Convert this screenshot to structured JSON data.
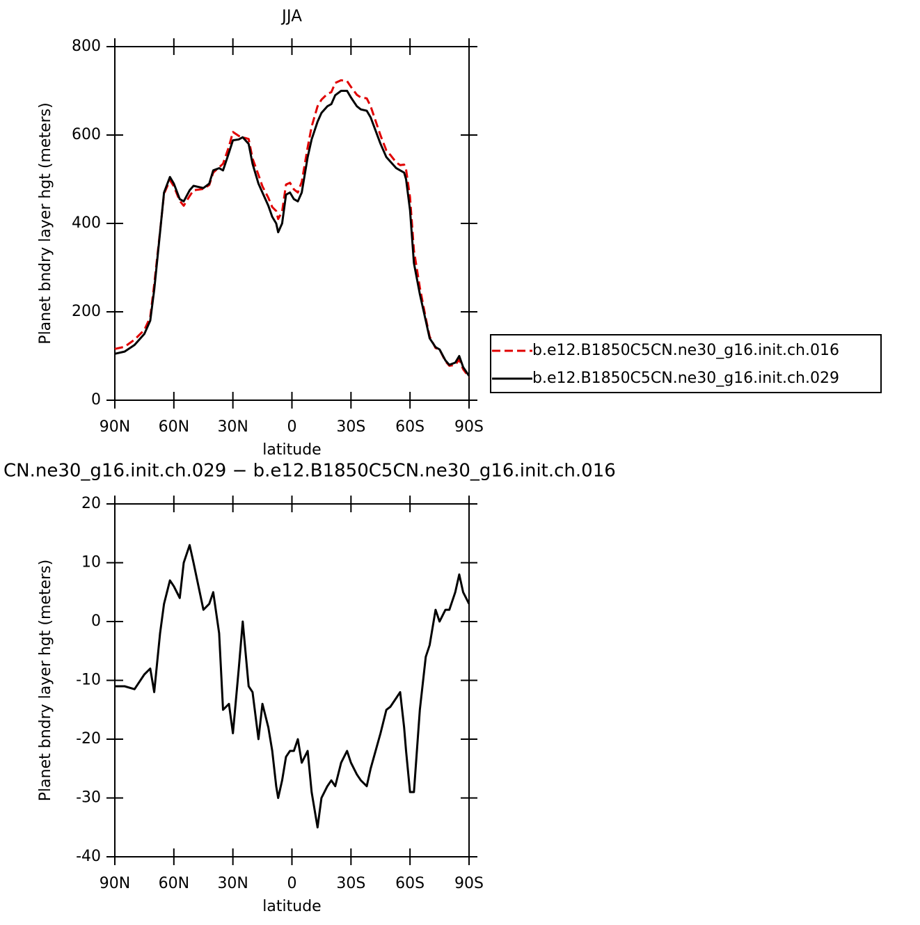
{
  "chart_data": [
    {
      "type": "line",
      "title": "JJA",
      "xlabel": "latitude",
      "ylabel": "Planet bndry layer hgt (meters)",
      "x": [
        90,
        85,
        80,
        75,
        72,
        70,
        67,
        65,
        62,
        60,
        57,
        55,
        52,
        50,
        45,
        42,
        40,
        37,
        35,
        32,
        30,
        27,
        25,
        22,
        20,
        17,
        15,
        12,
        10,
        8,
        7,
        5,
        3,
        1,
        -1,
        -3,
        -5,
        -8,
        -10,
        -13,
        -15,
        -18,
        -20,
        -22,
        -25,
        -28,
        -30,
        -33,
        -35,
        -38,
        -40,
        -45,
        -48,
        -50,
        -53,
        -55,
        -57,
        -58,
        -60,
        -62,
        -65,
        -68,
        -70,
        -73,
        -75,
        -78,
        -80,
        -83,
        -85,
        -87,
        -90
      ],
      "xlim": [
        90,
        -90
      ],
      "xticks": [
        {
          "value": 90,
          "label": "90N"
        },
        {
          "value": 60,
          "label": "60N"
        },
        {
          "value": 30,
          "label": "30N"
        },
        0,
        {
          "value": -30,
          "label": "30S"
        },
        {
          "value": -60,
          "label": "60S"
        },
        {
          "value": -90,
          "label": "90S"
        }
      ],
      "ylim": [
        0,
        800
      ],
      "yticks": [
        0,
        200,
        400,
        600,
        800
      ],
      "legend": "right",
      "series": [
        {
          "name": "b.e12.B1850C5CN.ne30_g16.init.ch.016",
          "color": "#e00000",
          "linestyle": "dashed",
          "values": [
            116,
            121,
            137,
            159,
            188,
            262,
            382,
            467,
            498,
            484,
            451,
            440,
            462,
            475,
            478,
            487,
            515,
            527,
            535,
            574,
            607,
            598,
            595,
            591,
            547,
            510,
            484,
            458,
            437,
            428,
            410,
            427,
            488,
            492,
            477,
            470,
            494,
            572,
            619,
            665,
            680,
            693,
            697,
            718,
            724,
            722,
            709,
            691,
            685,
            683,
            665,
            599,
            565,
            555,
            538,
            532,
            533,
            522,
            459,
            339,
            255,
            186,
            144,
            118,
            115,
            88,
            78,
            80,
            92,
            70,
            52
          ]
        },
        {
          "name": "b.e12.B1850C5CN.ne30_g16.init.ch.029",
          "color": "#000000",
          "linestyle": "solid",
          "values": [
            105,
            110,
            125,
            150,
            180,
            250,
            380,
            470,
            505,
            490,
            455,
            450,
            475,
            485,
            480,
            490,
            520,
            525,
            520,
            560,
            588,
            590,
            595,
            580,
            535,
            490,
            470,
            440,
            415,
            400,
            380,
            400,
            465,
            470,
            455,
            450,
            470,
            550,
            590,
            630,
            650,
            665,
            670,
            690,
            700,
            700,
            685,
            665,
            658,
            655,
            640,
            580,
            550,
            540,
            525,
            520,
            515,
            500,
            430,
            310,
            240,
            180,
            140,
            120,
            115,
            90,
            80,
            85,
            100,
            75,
            55
          ]
        }
      ]
    },
    {
      "type": "line",
      "title": "CN.ne30_g16.init.ch.029 − b.e12.B1850C5CN.ne30_g16.init.ch.016",
      "xlabel": "latitude",
      "ylabel": "Planet bndry layer hgt (meters)",
      "x": [
        90,
        85,
        80,
        75,
        72,
        70,
        67,
        65,
        62,
        60,
        57,
        55,
        52,
        50,
        45,
        42,
        40,
        37,
        35,
        32,
        30,
        27,
        25,
        22,
        20,
        17,
        15,
        12,
        10,
        8,
        7,
        5,
        3,
        1,
        -1,
        -3,
        -5,
        -8,
        -10,
        -13,
        -15,
        -18,
        -20,
        -22,
        -25,
        -28,
        -30,
        -33,
        -35,
        -38,
        -40,
        -45,
        -48,
        -50,
        -53,
        -55,
        -57,
        -58,
        -60,
        -62,
        -65,
        -68,
        -70,
        -73,
        -75,
        -78,
        -80,
        -83,
        -85,
        -87,
        -90
      ],
      "xlim": [
        90,
        -90
      ],
      "xticks": [
        {
          "value": 90,
          "label": "90N"
        },
        {
          "value": 60,
          "label": "60N"
        },
        {
          "value": 30,
          "label": "30N"
        },
        0,
        {
          "value": -30,
          "label": "30S"
        },
        {
          "value": -60,
          "label": "60S"
        },
        {
          "value": -90,
          "label": "90S"
        }
      ],
      "ylim": [
        -40,
        20
      ],
      "yticks": [
        -40,
        -30,
        -20,
        -10,
        0,
        10,
        20
      ],
      "color": "#000000",
      "values": [
        -11,
        -11,
        -11.5,
        -9,
        -8,
        -12,
        -2,
        3,
        7,
        6,
        4,
        10,
        13,
        10,
        2,
        3,
        5,
        -2,
        -15,
        -14,
        -19,
        -8,
        0,
        -11,
        -12,
        -20,
        -14,
        -18,
        -22,
        -28,
        -30,
        -27,
        -23,
        -22,
        -22,
        -20,
        -24,
        -22,
        -29,
        -35,
        -30,
        -28,
        -27,
        -28,
        -24,
        -22,
        -24,
        -26,
        -27,
        -28,
        -25,
        -19,
        -15,
        -14.5,
        -13,
        -12,
        -18,
        -22,
        -29,
        -29,
        -15,
        -6,
        -4,
        2,
        0,
        2,
        2,
        5,
        8,
        5,
        3
      ]
    }
  ]
}
